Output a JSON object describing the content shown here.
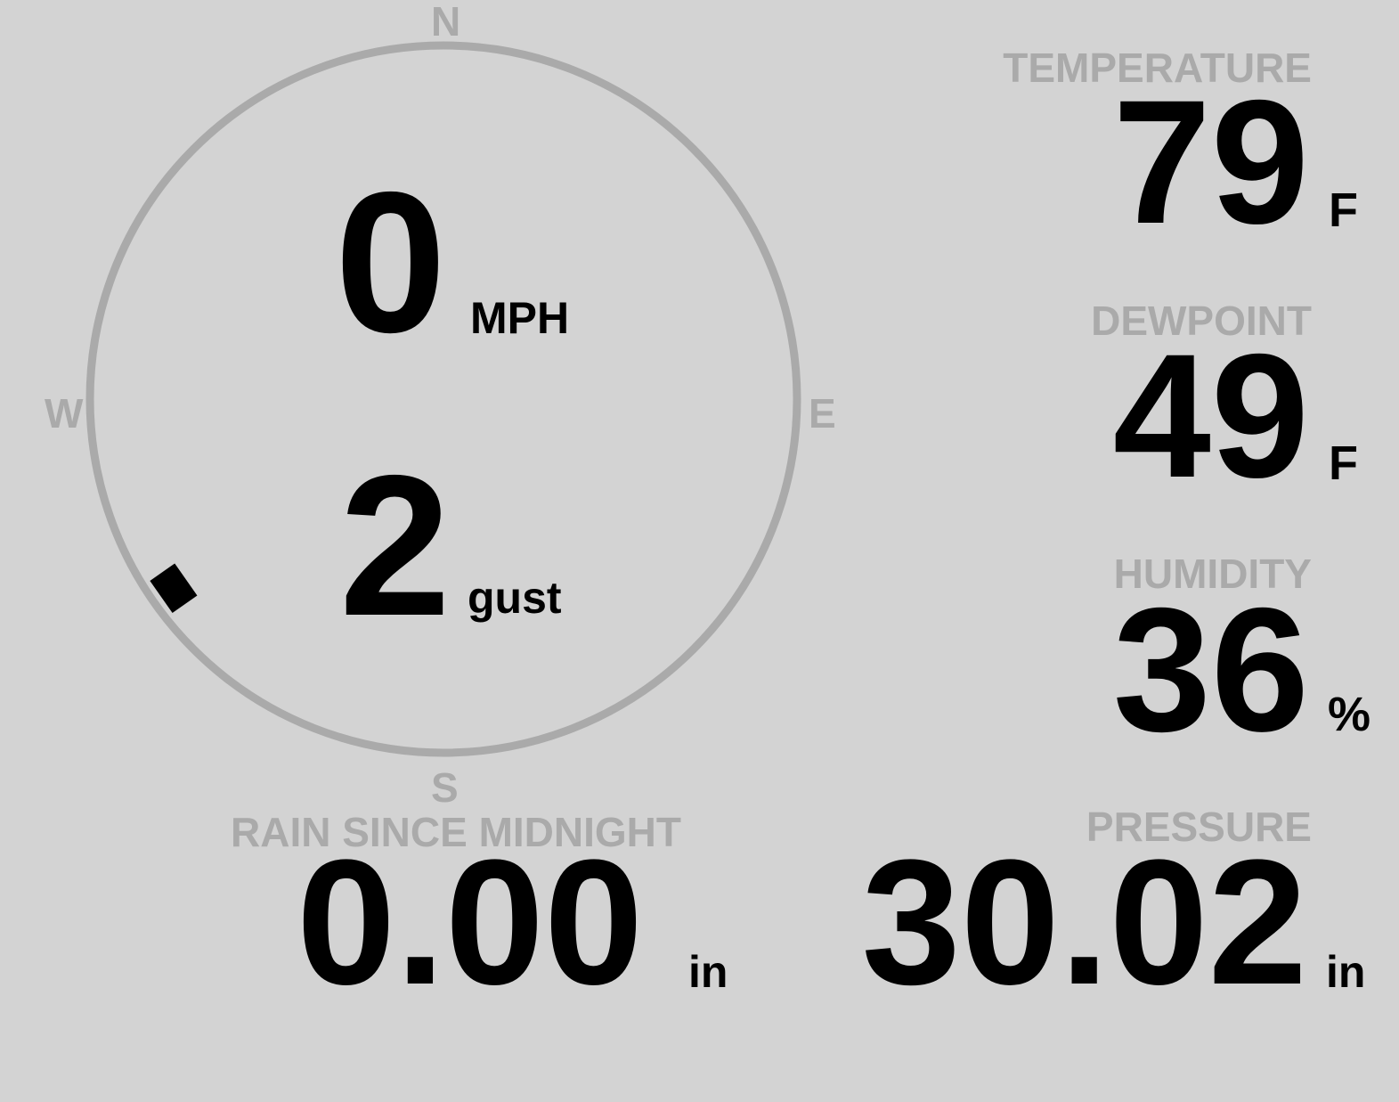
{
  "colors": {
    "background": "#d3d3d3",
    "label": "#aaaaaa",
    "value": "#000000"
  },
  "compass": {
    "north": "N",
    "east": "E",
    "south": "S",
    "west": "W",
    "wind_direction_deg": 235
  },
  "wind": {
    "speed": "0",
    "speed_unit": "MPH",
    "gust": "2",
    "gust_unit": "gust"
  },
  "temperature": {
    "label": "TEMPERATURE",
    "value": "79",
    "unit": "F"
  },
  "dewpoint": {
    "label": "DEWPOINT",
    "value": "49",
    "unit": "F"
  },
  "humidity": {
    "label": "HUMIDITY",
    "value": "36",
    "unit": "%"
  },
  "rain": {
    "label": "RAIN SINCE MIDNIGHT",
    "value": "0.00",
    "unit": "in"
  },
  "pressure": {
    "label": "PRESSURE",
    "value": "30.02",
    "unit": "in"
  }
}
